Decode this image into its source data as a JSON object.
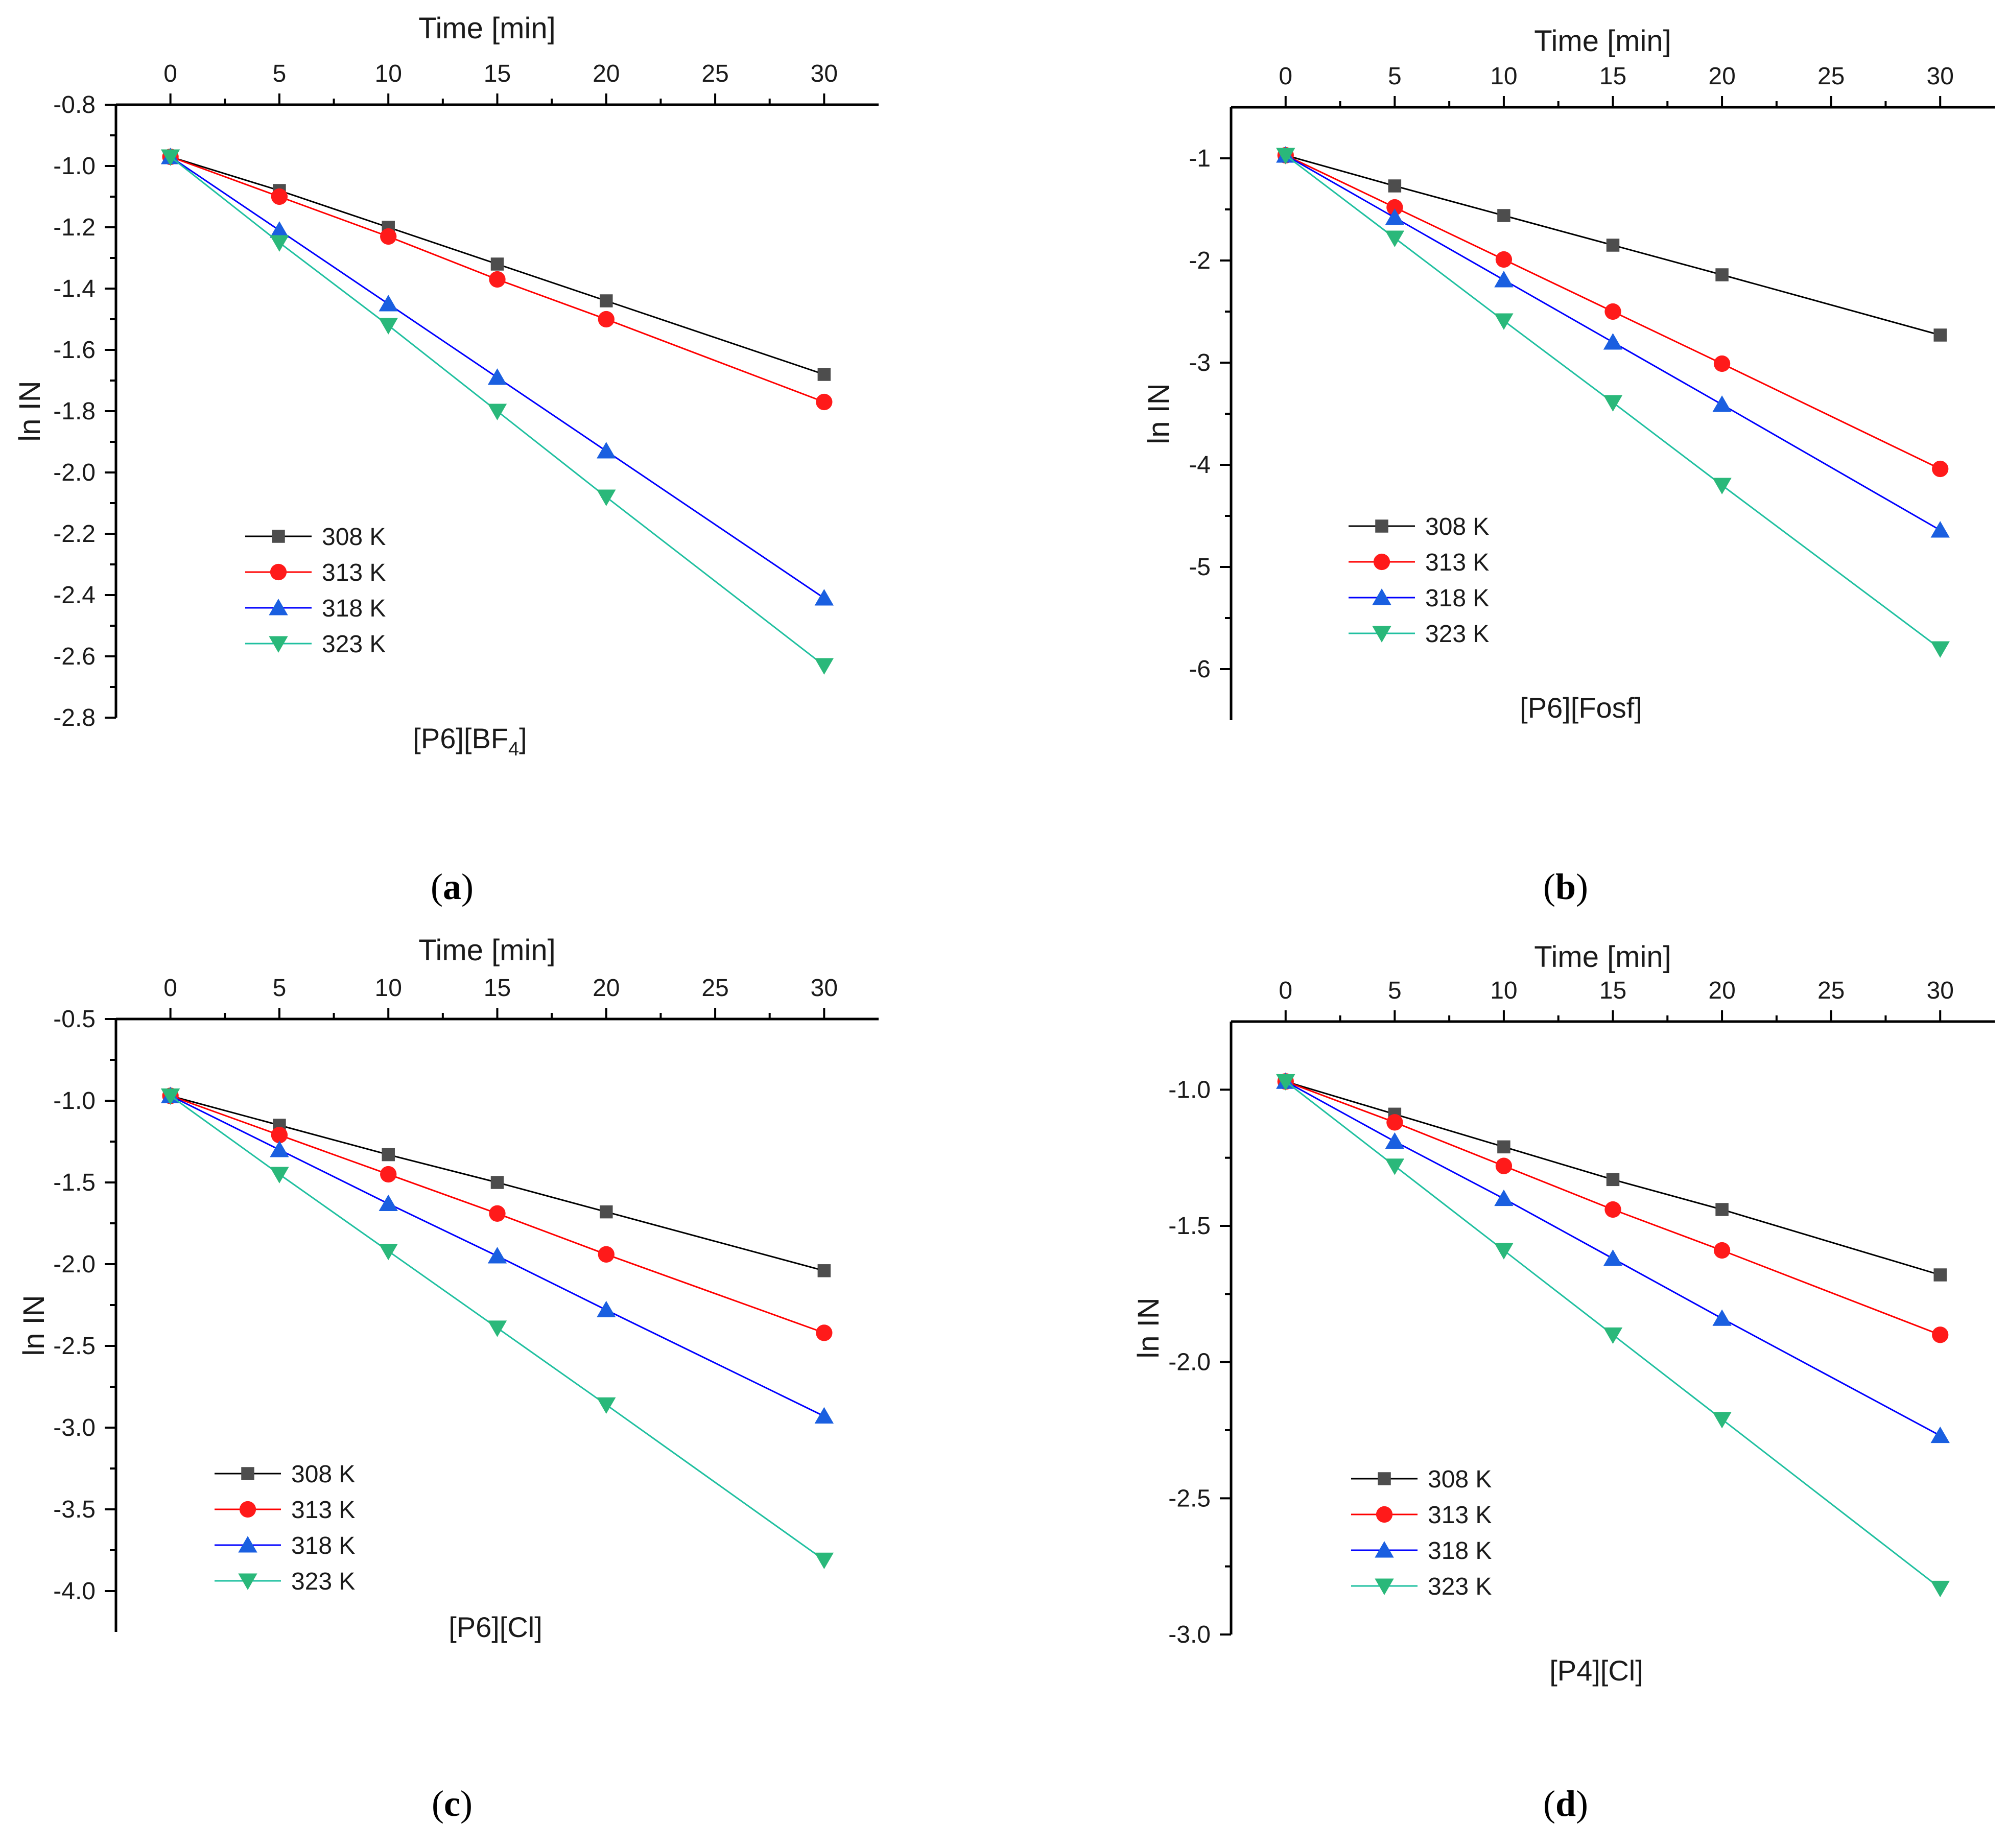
{
  "colors": {
    "s308": "#4d4d4d",
    "s313": "#ff1a1a",
    "s318": "#1a5fe0",
    "s323": "#2ab87a",
    "line308": "#000000",
    "line313": "#ff0000",
    "line318": "#0000ff",
    "line323": "#20c0a0",
    "axis": "#000000"
  },
  "chart_data": [
    {
      "type": "line",
      "panel": "a",
      "panel_label": "a",
      "title": "",
      "caption": "[P6][BF",
      "caption_sub": "4",
      "caption_end": "]",
      "xlabel": "Time [min]",
      "ylabel": "ln IN",
      "xlim": [
        -2.5,
        32.5
      ],
      "ylim": [
        -2.8,
        -0.8
      ],
      "xticks": [
        0,
        5,
        10,
        15,
        20,
        25,
        30
      ],
      "xtick_labels": [
        "0",
        "5",
        "10",
        "15",
        "20",
        "25",
        "30"
      ],
      "yticks": [
        -0.8,
        -1.0,
        -1.2,
        -1.4,
        -1.6,
        -1.8,
        -2.0,
        -2.2,
        -2.4,
        -2.6,
        -2.8
      ],
      "ytick_labels": [
        "-0.8",
        "-1.0",
        "-1.2",
        "-1.4",
        "-1.6",
        "-1.8",
        "-2.0",
        "-2.2",
        "-2.4",
        "-2.6",
        "-2.8"
      ],
      "legend_position": "lower-left",
      "x": [
        0,
        5,
        10,
        15,
        20,
        30
      ],
      "series": [
        {
          "name": "308 K",
          "key": "308",
          "marker": "square",
          "values": [
            -0.97,
            -1.08,
            -1.2,
            -1.32,
            -1.44,
            -1.68
          ]
        },
        {
          "name": "313 K",
          "key": "313",
          "marker": "circle",
          "values": [
            -0.97,
            -1.1,
            -1.23,
            -1.37,
            -1.5,
            -1.77
          ]
        },
        {
          "name": "318 K",
          "key": "318",
          "marker": "triangle-up",
          "values": [
            -0.97,
            -1.21,
            -1.45,
            -1.69,
            -1.93,
            -2.41
          ]
        },
        {
          "name": "323 K",
          "key": "323",
          "marker": "triangle-down",
          "values": [
            -0.97,
            -1.25,
            -1.52,
            -1.8,
            -2.08,
            -2.63
          ]
        }
      ]
    },
    {
      "type": "line",
      "panel": "b",
      "panel_label": "b",
      "title": "",
      "caption": "[P6][Fosf]",
      "caption_sub": "",
      "caption_end": "",
      "xlabel": "Time [min]",
      "ylabel": "ln IN",
      "xlim": [
        -2.5,
        32.5
      ],
      "ylim": [
        -6.5,
        -0.5
      ],
      "xticks": [
        0,
        5,
        10,
        15,
        20,
        25,
        30
      ],
      "xtick_labels": [
        "0",
        "5",
        "10",
        "15",
        "20",
        "25",
        "30"
      ],
      "yticks": [
        -1,
        -2,
        -3,
        -4,
        -5,
        -6
      ],
      "ytick_labels": [
        "-1",
        "-2",
        "-3",
        "-4",
        "-5",
        "-6"
      ],
      "legend_position": "lower-left",
      "x": [
        0,
        5,
        10,
        15,
        20,
        30
      ],
      "series": [
        {
          "name": "308 K",
          "key": "308",
          "marker": "square",
          "values": [
            -0.97,
            -1.27,
            -1.56,
            -1.85,
            -2.14,
            -2.73
          ]
        },
        {
          "name": "313 K",
          "key": "313",
          "marker": "circle",
          "values": [
            -0.97,
            -1.48,
            -1.99,
            -2.5,
            -3.01,
            -4.04
          ]
        },
        {
          "name": "318 K",
          "key": "318",
          "marker": "triangle-up",
          "values": [
            -0.97,
            -1.58,
            -2.19,
            -2.8,
            -3.41,
            -4.64
          ]
        },
        {
          "name": "323 K",
          "key": "323",
          "marker": "triangle-down",
          "values": [
            -0.97,
            -1.78,
            -2.59,
            -3.39,
            -4.2,
            -5.8
          ]
        }
      ]
    },
    {
      "type": "line",
      "panel": "c",
      "panel_label": "c",
      "title": "",
      "caption": "[P6][Cl]",
      "caption_sub": "",
      "caption_end": "",
      "xlabel": "Time [min]",
      "ylabel": "ln IN",
      "xlim": [
        -2.5,
        32.5
      ],
      "ylim": [
        -4.25,
        -0.5
      ],
      "xticks": [
        0,
        5,
        10,
        15,
        20,
        25,
        30
      ],
      "xtick_labels": [
        "0",
        "5",
        "10",
        "15",
        "20",
        "25",
        "30"
      ],
      "yticks": [
        -0.5,
        -1.0,
        -1.5,
        -2.0,
        -2.5,
        -3.0,
        -3.5,
        -4.0
      ],
      "ytick_labels": [
        "-0.5",
        "-1.0",
        "-1.5",
        "-2.0",
        "-2.5",
        "-3.0",
        "-3.5",
        "-4.0"
      ],
      "legend_position": "lower-left",
      "x": [
        0,
        5,
        10,
        15,
        20,
        30
      ],
      "series": [
        {
          "name": "308 K",
          "key": "308",
          "marker": "square",
          "values": [
            -0.97,
            -1.15,
            -1.33,
            -1.5,
            -1.68,
            -2.04
          ]
        },
        {
          "name": "313 K",
          "key": "313",
          "marker": "circle",
          "values": [
            -0.97,
            -1.21,
            -1.45,
            -1.69,
            -1.94,
            -2.42
          ]
        },
        {
          "name": "318 K",
          "key": "318",
          "marker": "triangle-up",
          "values": [
            -0.97,
            -1.3,
            -1.63,
            -1.95,
            -2.28,
            -2.93
          ]
        },
        {
          "name": "323 K",
          "key": "323",
          "marker": "triangle-down",
          "values": [
            -0.97,
            -1.45,
            -1.92,
            -2.39,
            -2.86,
            -3.81
          ]
        }
      ]
    },
    {
      "type": "line",
      "panel": "d",
      "panel_label": "d",
      "title": "",
      "caption": "[P4][Cl]",
      "caption_sub": "",
      "caption_end": "",
      "xlabel": "Time [min]",
      "ylabel": "ln IN",
      "xlim": [
        -2.5,
        32.5
      ],
      "ylim": [
        -3.0,
        -0.75
      ],
      "xticks": [
        0,
        5,
        10,
        15,
        20,
        25,
        30
      ],
      "xtick_labels": [
        "0",
        "5",
        "10",
        "15",
        "20",
        "25",
        "30"
      ],
      "yticks": [
        -1.0,
        -1.5,
        -2.0,
        -2.5,
        -3.0
      ],
      "ytick_labels": [
        "-1.0",
        "-1.5",
        "-2.0",
        "-2.5",
        "-3.0"
      ],
      "legend_position": "lower-left",
      "x": [
        0,
        5,
        10,
        15,
        20,
        30
      ],
      "series": [
        {
          "name": "308 K",
          "key": "308",
          "marker": "square",
          "values": [
            -0.97,
            -1.09,
            -1.21,
            -1.33,
            -1.44,
            -1.68
          ]
        },
        {
          "name": "313 K",
          "key": "313",
          "marker": "circle",
          "values": [
            -0.97,
            -1.12,
            -1.28,
            -1.44,
            -1.59,
            -1.9
          ]
        },
        {
          "name": "318 K",
          "key": "318",
          "marker": "triangle-up",
          "values": [
            -0.97,
            -1.19,
            -1.4,
            -1.62,
            -1.84,
            -2.27
          ]
        },
        {
          "name": "323 K",
          "key": "323",
          "marker": "triangle-down",
          "values": [
            -0.97,
            -1.28,
            -1.59,
            -1.9,
            -2.21,
            -2.83
          ]
        }
      ]
    }
  ]
}
